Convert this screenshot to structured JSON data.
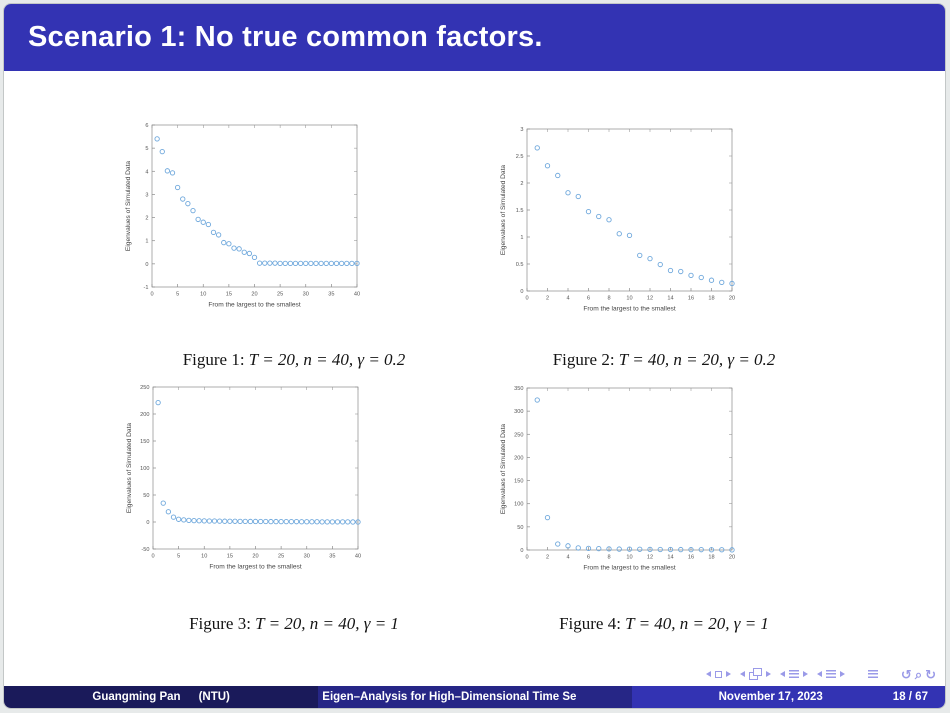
{
  "colors": {
    "structure": "#3333B3",
    "footer_middle": "#262686",
    "footer_left": "#1A1A5A",
    "marker": "#6FA8DC",
    "axis": "#8A8A8A",
    "nav": "#9A9AE8"
  },
  "slide": {
    "title": "Scenario 1: No true common factors."
  },
  "figures": [
    {
      "label": "Figure 1:",
      "formula": "T = 20, n = 40, γ = 0.2"
    },
    {
      "label": "Figure 2:",
      "formula": "T = 40, n = 20, γ = 0.2"
    },
    {
      "label": "Figure 3:",
      "formula": "T = 20, n = 40, γ = 1"
    },
    {
      "label": "Figure 4:",
      "formula": "T = 40, n = 20, γ = 1"
    }
  ],
  "chart_data": [
    {
      "type": "scatter",
      "title": "",
      "xlabel": "From the largest to the smallest",
      "ylabel": "Eigenvalues of Simulated Data",
      "xlim": [
        0,
        40
      ],
      "ylim": [
        -1,
        6
      ],
      "xticks": [
        0,
        5,
        10,
        15,
        20,
        25,
        30,
        35,
        40
      ],
      "yticks": [
        -1,
        0,
        1,
        2,
        3,
        4,
        5,
        6
      ],
      "x": [
        1,
        2,
        3,
        4,
        5,
        6,
        7,
        8,
        9,
        10,
        11,
        12,
        13,
        14,
        15,
        16,
        17,
        18,
        19,
        20,
        21,
        22,
        23,
        24,
        25,
        26,
        27,
        28,
        29,
        30,
        31,
        32,
        33,
        34,
        35,
        36,
        37,
        38,
        39,
        40
      ],
      "y": [
        5.4,
        4.85,
        4.02,
        3.93,
        3.3,
        2.8,
        2.6,
        2.3,
        1.92,
        1.8,
        1.7,
        1.36,
        1.25,
        0.92,
        0.87,
        0.68,
        0.65,
        0.5,
        0.45,
        0.28,
        0.03,
        0.03,
        0.03,
        0.03,
        0.02,
        0.02,
        0.02,
        0.02,
        0.02,
        0.02,
        0.02,
        0.02,
        0.02,
        0.02,
        0.02,
        0.02,
        0.02,
        0.02,
        0.02,
        0.02
      ]
    },
    {
      "type": "scatter",
      "title": "",
      "xlabel": "From the largest to the smallest",
      "ylabel": "Eigenvalues of Simulated Data",
      "xlim": [
        0,
        20
      ],
      "ylim": [
        0,
        3
      ],
      "xticks": [
        0,
        2,
        4,
        6,
        8,
        10,
        12,
        14,
        16,
        18,
        20
      ],
      "yticks": [
        0,
        0.5,
        1,
        1.5,
        2,
        2.5,
        3
      ],
      "x": [
        1,
        2,
        3,
        4,
        5,
        6,
        7,
        8,
        9,
        10,
        11,
        12,
        13,
        14,
        15,
        16,
        17,
        18,
        19,
        20
      ],
      "y": [
        2.65,
        2.32,
        2.14,
        1.82,
        1.75,
        1.47,
        1.38,
        1.32,
        1.06,
        1.03,
        0.66,
        0.6,
        0.49,
        0.38,
        0.36,
        0.29,
        0.25,
        0.2,
        0.16,
        0.14
      ]
    },
    {
      "type": "scatter",
      "title": "",
      "xlabel": "From the largest to the smallest",
      "ylabel": "Eigenvalues of Simulated Data",
      "xlim": [
        0,
        40
      ],
      "ylim": [
        -50,
        250
      ],
      "xticks": [
        0,
        5,
        10,
        15,
        20,
        25,
        30,
        35,
        40
      ],
      "yticks": [
        -50,
        0,
        50,
        100,
        150,
        200,
        250
      ],
      "x": [
        1,
        2,
        3,
        4,
        5,
        6,
        7,
        8,
        9,
        10,
        11,
        12,
        13,
        14,
        15,
        16,
        17,
        18,
        19,
        20,
        21,
        22,
        23,
        24,
        25,
        26,
        27,
        28,
        29,
        30,
        31,
        32,
        33,
        34,
        35,
        36,
        37,
        38,
        39,
        40
      ],
      "y": [
        221,
        35,
        19,
        9,
        5,
        4,
        3,
        2.6,
        2.3,
        2.1,
        1.9,
        1.8,
        1.6,
        1.5,
        1.4,
        1.3,
        1.2,
        1.1,
        1.0,
        1.0,
        0.9,
        0.9,
        0.8,
        0.8,
        0.7,
        0.7,
        0.6,
        0.6,
        0.5,
        0.5,
        0.4,
        0.4,
        0.3,
        0.3,
        0.3,
        0.2,
        0.2,
        0.2,
        0.1,
        0.1
      ]
    },
    {
      "type": "scatter",
      "title": "",
      "xlabel": "From the largest to the smallest",
      "ylabel": "Eigenvalues of Simulated Data",
      "xlim": [
        0,
        20
      ],
      "ylim": [
        0,
        350
      ],
      "xticks": [
        0,
        2,
        4,
        6,
        8,
        10,
        12,
        14,
        16,
        18,
        20
      ],
      "yticks": [
        0,
        50,
        100,
        150,
        200,
        250,
        300,
        350
      ],
      "x": [
        1,
        2,
        3,
        4,
        5,
        6,
        7,
        8,
        9,
        10,
        11,
        12,
        13,
        14,
        15,
        16,
        17,
        18,
        19,
        20
      ],
      "y": [
        324,
        70,
        13,
        9,
        4.5,
        3.5,
        3,
        2.5,
        2,
        1.8,
        1.5,
        1.3,
        1.1,
        1.0,
        0.9,
        0.8,
        0.7,
        0.6,
        0.5,
        0.4
      ]
    }
  ],
  "footer": {
    "author": "Guangming Pan",
    "institute": "(NTU)",
    "short_title": "Eigen–Analysis for High–Dimensional Time Se",
    "date": "November 17, 2023",
    "page": "18 / 67"
  },
  "nav_icons": [
    "prev-slide",
    "current-slide",
    "next-slide",
    "prev-frame",
    "frames",
    "next-frame",
    "prev-subsection",
    "subsection-list",
    "next-subsection",
    "prev-section",
    "section-list",
    "next-section",
    "presentation-overview",
    "undo",
    "search",
    "redo"
  ]
}
